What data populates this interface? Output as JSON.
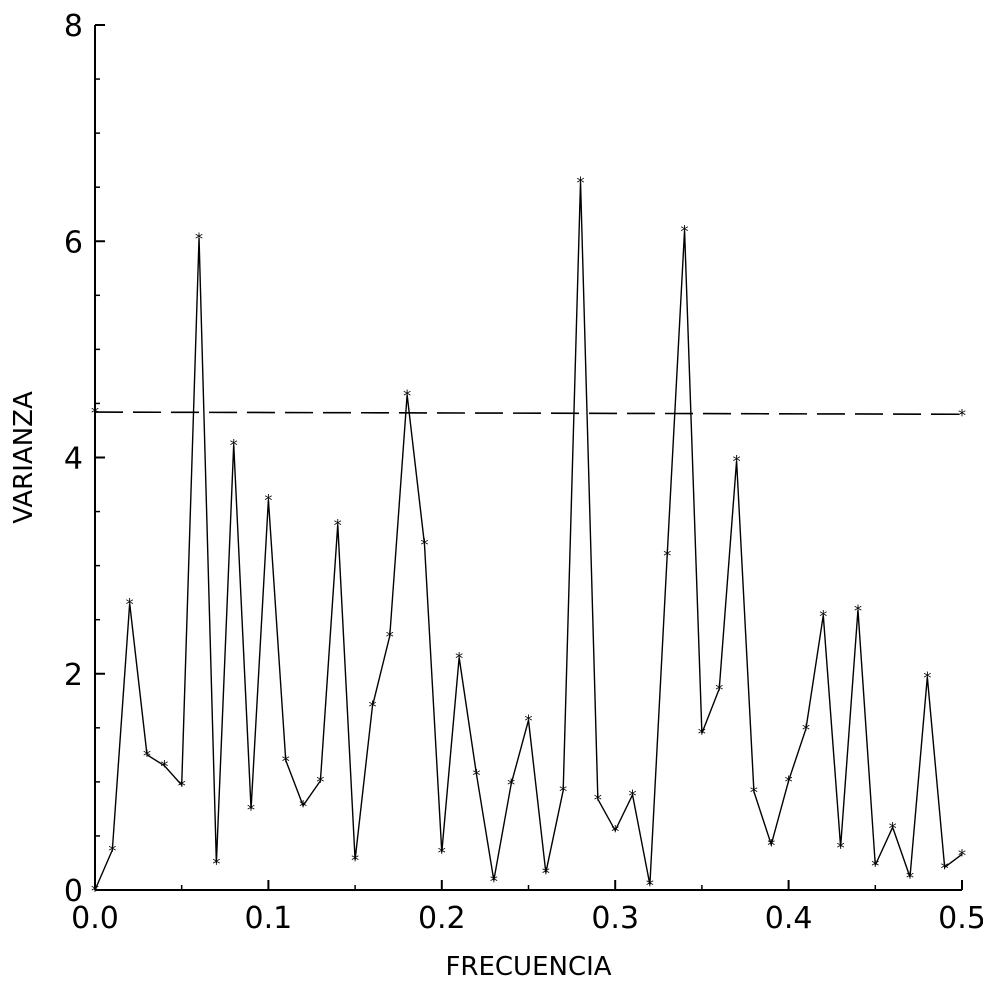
{
  "chart_data": {
    "type": "line",
    "title": "",
    "xlabel": "FRECUENCIA",
    "ylabel": "VARIANZA",
    "xlim": [
      0,
      0.5
    ],
    "ylim": [
      0,
      8
    ],
    "xticks": [
      0.0,
      0.1,
      0.2,
      0.3,
      0.4,
      0.5
    ],
    "xtick_labels": [
      "0.0",
      "0.1",
      "0.2",
      "0.3",
      "0.4",
      "0.5"
    ],
    "yticks": [
      0,
      2,
      4,
      6,
      8
    ],
    "ytick_labels": [
      "0",
      "2",
      "4",
      "6",
      "8"
    ],
    "grid": false,
    "legend": "none",
    "series": [
      {
        "style": "solid line with asterisk markers",
        "color": "#000000",
        "x": [
          0.0,
          0.01,
          0.02,
          0.03,
          0.04,
          0.05,
          0.06,
          0.07,
          0.08,
          0.09,
          0.1,
          0.11,
          0.12,
          0.13,
          0.14,
          0.15,
          0.16,
          0.17,
          0.18,
          0.19,
          0.2,
          0.21,
          0.22,
          0.23,
          0.24,
          0.25,
          0.26,
          0.27,
          0.28,
          0.29,
          0.3,
          0.31,
          0.32,
          0.33,
          0.34,
          0.35,
          0.36,
          0.37,
          0.38,
          0.39,
          0.4,
          0.41,
          0.42,
          0.43,
          0.44,
          0.45,
          0.46,
          0.47,
          0.48,
          0.49,
          0.5
        ],
        "y": [
          0.0,
          0.37,
          2.65,
          1.25,
          1.15,
          0.97,
          6.03,
          0.25,
          4.12,
          0.75,
          3.61,
          1.2,
          0.78,
          1.01,
          3.38,
          0.28,
          1.7,
          2.35,
          4.58,
          3.2,
          0.35,
          2.15,
          1.07,
          0.09,
          0.98,
          1.57,
          0.16,
          0.92,
          6.55,
          0.84,
          0.55,
          0.88,
          0.05,
          3.1,
          6.1,
          1.45,
          1.86,
          3.97,
          0.91,
          0.42,
          1.01,
          1.49,
          2.54,
          0.4,
          2.59,
          0.23,
          0.58,
          0.12,
          1.97,
          0.21,
          0.33
        ]
      },
      {
        "style": "dashed reference line",
        "color": "#000000",
        "x": [
          0.0,
          0.5
        ],
        "y": [
          4.42,
          4.4
        ]
      }
    ]
  }
}
